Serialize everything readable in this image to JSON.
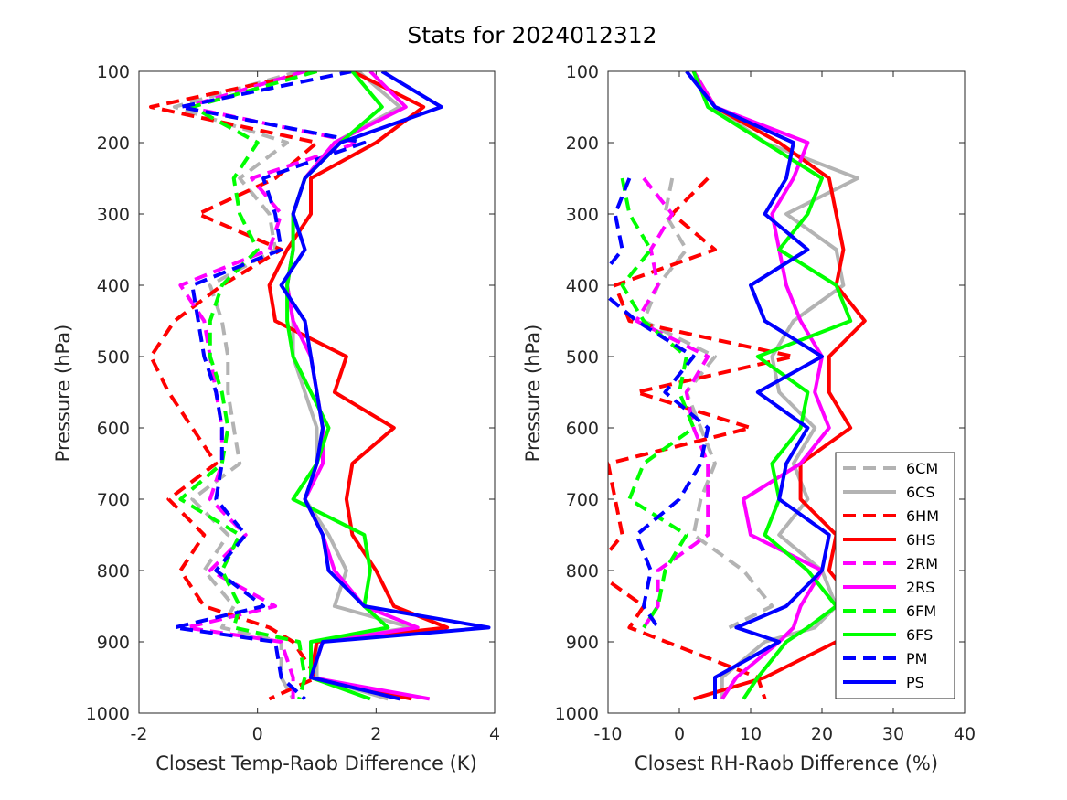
{
  "figure": {
    "title": "Stats for 2024012312"
  },
  "legend": {
    "placement": "bottom-right of right panel",
    "entries": [
      {
        "name": "6CM",
        "color": "#b3b3b3",
        "dash": true
      },
      {
        "name": "6CS",
        "color": "#b3b3b3",
        "dash": false
      },
      {
        "name": "6HM",
        "color": "#ff0000",
        "dash": true
      },
      {
        "name": "6HS",
        "color": "#ff0000",
        "dash": false
      },
      {
        "name": "2RM",
        "color": "#ff00ff",
        "dash": true
      },
      {
        "name": "2RS",
        "color": "#ff00ff",
        "dash": false
      },
      {
        "name": "6FM",
        "color": "#00ff00",
        "dash": true
      },
      {
        "name": "6FS",
        "color": "#00ff00",
        "dash": false
      },
      {
        "name": "PM",
        "color": "#0000ff",
        "dash": true
      },
      {
        "name": "PS",
        "color": "#0000ff",
        "dash": false
      }
    ]
  },
  "chart_data": [
    {
      "type": "line",
      "title": "Stats for 2024012312",
      "xlabel": "Closest Temp-Raob Difference (K)",
      "ylabel": "Pressure (hPa)",
      "xlim": [
        -2,
        4
      ],
      "ylim": [
        100,
        1000
      ],
      "y_reversed": true,
      "xticks": [
        "-2",
        "0",
        "2",
        "4"
      ],
      "yticks": [
        "100",
        "200",
        "300",
        "400",
        "500",
        "600",
        "700",
        "800",
        "900",
        "1000"
      ],
      "pressure": [
        100,
        150,
        200,
        250,
        300,
        350,
        400,
        450,
        500,
        550,
        600,
        650,
        700,
        750,
        800,
        850,
        880,
        900,
        950,
        980
      ],
      "series": [
        {
          "name": "6CM",
          "values": [
            0.7,
            -1.4,
            0.5,
            -0.3,
            0.2,
            0.3,
            -0.8,
            -0.6,
            -0.5,
            -0.5,
            -0.4,
            -0.3,
            -1.1,
            -0.5,
            -0.9,
            -0.4,
            -0.6,
            0.4,
            0.4,
            0.6
          ]
        },
        {
          "name": "6CS",
          "values": [
            1.7,
            2.4,
            1.3,
            0.8,
            0.6,
            0.6,
            0.5,
            0.6,
            0.6,
            0.8,
            1.0,
            1.0,
            0.8,
            1.2,
            1.5,
            1.3,
            2.6,
            1.0,
            1.0,
            2.2
          ]
        },
        {
          "name": "6HM",
          "values": [
            1.0,
            -1.8,
            1.0,
            0.3,
            -1.0,
            0.4,
            -0.6,
            -1.4,
            -1.8,
            -1.5,
            -1.1,
            -0.7,
            -1.5,
            -0.9,
            -1.3,
            -0.9,
            0.2,
            0.6,
            1.0,
            0.2
          ]
        },
        {
          "name": "6HS",
          "values": [
            1.6,
            2.8,
            2.0,
            0.9,
            0.9,
            0.5,
            0.2,
            0.3,
            1.5,
            1.3,
            2.3,
            1.6,
            1.5,
            1.6,
            2.0,
            2.3,
            3.2,
            1.0,
            0.9,
            2.6
          ]
        },
        {
          "name": "2RM",
          "values": [
            0.8,
            -1.2,
            1.7,
            -0.1,
            0.4,
            0.2,
            -1.3,
            -0.9,
            -0.8,
            -0.7,
            -0.6,
            -0.6,
            -0.8,
            -0.2,
            -0.8,
            0.3,
            -1.2,
            0.4,
            0.6,
            0.6
          ]
        },
        {
          "name": "2RS",
          "values": [
            1.9,
            2.5,
            1.3,
            0.8,
            0.6,
            0.6,
            0.5,
            0.6,
            0.9,
            1.0,
            1.1,
            1.1,
            0.8,
            1.1,
            1.3,
            1.8,
            2.7,
            1.1,
            0.9,
            2.9
          ]
        },
        {
          "name": "6FM",
          "values": [
            1.0,
            -1.1,
            0.0,
            -0.4,
            -0.3,
            0.0,
            -0.6,
            -0.8,
            -0.8,
            -0.6,
            -0.5,
            -0.6,
            -1.3,
            -0.3,
            -0.6,
            -0.3,
            -0.4,
            0.7,
            0.8,
            0.7
          ]
        },
        {
          "name": "6FS",
          "values": [
            1.6,
            2.1,
            1.4,
            0.8,
            0.6,
            0.6,
            0.5,
            0.5,
            0.6,
            0.9,
            1.2,
            1.0,
            0.6,
            1.8,
            1.9,
            1.8,
            2.2,
            0.9,
            0.9,
            1.9
          ]
        },
        {
          "name": "PM",
          "values": [
            1.6,
            -1.3,
            1.8,
            0.1,
            0.3,
            0.4,
            -1.1,
            -1.0,
            -0.9,
            -0.7,
            -0.6,
            -0.6,
            -0.7,
            -0.2,
            -0.7,
            0.1,
            -1.4,
            0.3,
            0.4,
            0.8
          ]
        },
        {
          "name": "PS",
          "values": [
            2.1,
            3.1,
            1.4,
            0.8,
            0.6,
            0.8,
            0.4,
            0.8,
            0.9,
            1.0,
            1.1,
            1.0,
            0.8,
            1.1,
            1.2,
            1.8,
            3.9,
            1.1,
            0.9,
            2.4
          ]
        }
      ]
    },
    {
      "type": "line",
      "xlabel": "Closest RH-Raob Difference (%)",
      "ylabel": "Pressure (hPa)",
      "xlim": [
        -10,
        40
      ],
      "ylim": [
        100,
        1000
      ],
      "y_reversed": true,
      "xticks": [
        "-10",
        "0",
        "10",
        "20",
        "30",
        "40"
      ],
      "yticks": [
        "100",
        "200",
        "300",
        "400",
        "500",
        "600",
        "700",
        "800",
        "900",
        "1000"
      ],
      "pressure": [
        100,
        150,
        200,
        250,
        300,
        350,
        400,
        450,
        500,
        550,
        600,
        650,
        700,
        750,
        800,
        850,
        880,
        900,
        950,
        980
      ],
      "series": [
        {
          "name": "6CM",
          "values": [
            null,
            null,
            null,
            -1,
            -2,
            1,
            -3,
            -5,
            5,
            1,
            3,
            5,
            3,
            2,
            9,
            13,
            7,
            null,
            null,
            null
          ]
        },
        {
          "name": "6CS",
          "values": [
            2,
            5,
            12,
            25,
            15,
            22,
            23,
            16,
            13,
            14,
            19,
            16,
            18,
            14,
            20,
            22,
            19,
            12,
            6,
            6
          ]
        },
        {
          "name": "6HM",
          "values": [
            null,
            null,
            null,
            4,
            -1,
            5,
            -9,
            -7,
            16,
            -6,
            10,
            -10,
            -9,
            -8,
            -12,
            -5,
            -7,
            null,
            11,
            12
          ]
        },
        {
          "name": "6HS",
          "values": [
            2,
            5,
            14,
            21,
            22,
            23,
            22,
            26,
            21,
            21,
            24,
            17,
            17,
            22,
            21,
            25,
            24,
            22,
            12,
            2
          ]
        },
        {
          "name": "2RM",
          "values": [
            null,
            null,
            null,
            -5,
            -1,
            -4,
            -3,
            -6,
            4,
            1,
            2,
            4,
            4,
            4,
            -3,
            -3,
            -5,
            null,
            null,
            null
          ]
        },
        {
          "name": "2RS",
          "values": [
            2,
            5,
            18,
            16,
            13,
            14,
            15,
            17,
            20,
            19,
            21,
            17,
            9,
            10,
            20,
            17,
            16,
            14,
            8,
            6
          ]
        },
        {
          "name": "6FM",
          "values": [
            null,
            null,
            null,
            -8,
            -7,
            -4,
            -8,
            -5,
            1,
            0,
            2,
            -5,
            -7,
            1,
            -2,
            -3,
            -5,
            null,
            null,
            null
          ]
        },
        {
          "name": "6FS",
          "values": [
            2,
            4,
            12,
            20,
            18,
            14,
            22,
            24,
            11,
            18,
            17,
            13,
            14,
            12,
            18,
            22,
            18,
            15,
            11,
            9
          ]
        },
        {
          "name": "PM",
          "values": [
            null,
            null,
            null,
            -7,
            -9,
            -8,
            -12,
            -6,
            2,
            -2,
            4,
            3,
            0,
            -6,
            -4,
            -5,
            -3,
            null,
            null,
            null
          ]
        },
        {
          "name": "PS",
          "values": [
            1,
            5,
            16,
            15,
            12,
            18,
            10,
            12,
            20,
            11,
            18,
            15,
            14,
            21,
            20,
            15,
            8,
            14,
            5,
            5
          ]
        }
      ]
    }
  ]
}
